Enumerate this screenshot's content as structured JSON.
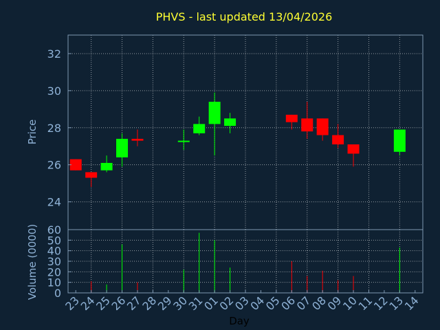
{
  "chart_data": {
    "type": "candlestick",
    "title": "PHVS - last updated 13/04/2026",
    "xlabel": "Day",
    "x_tick_labels": [
      "23",
      "24",
      "25",
      "26",
      "27",
      "28",
      "29",
      "30",
      "31",
      "01",
      "02",
      "03",
      "04",
      "05",
      "06",
      "07",
      "08",
      "09",
      "10",
      "11",
      "12",
      "13",
      "14"
    ],
    "colors": {
      "up": "#00ff00",
      "down": "#ff0000",
      "title": "#ffff33",
      "axis_text": "#8fb2d6",
      "background": "#0f2132"
    },
    "price_panel": {
      "ylabel": "Price",
      "ylim": [
        22.5,
        33.0
      ],
      "yticks": [
        24,
        26,
        28,
        30,
        32
      ],
      "grid": true
    },
    "volume_panel": {
      "ylabel": "Volume (0000)",
      "ylim": [
        0,
        60
      ],
      "yticks": [
        0,
        10,
        20,
        30,
        40,
        50,
        60
      ],
      "grid": true
    },
    "candles": [
      {
        "day": "23",
        "open": 26.3,
        "high": 26.3,
        "low": 25.7,
        "close": 25.7,
        "volume": 0
      },
      {
        "day": "24",
        "open": 25.6,
        "high": 25.6,
        "low": 24.8,
        "close": 25.3,
        "volume": 11
      },
      {
        "day": "25",
        "open": 25.7,
        "high": 26.5,
        "low": 25.6,
        "close": 26.1,
        "volume": 8
      },
      {
        "day": "26",
        "open": 26.4,
        "high": 27.7,
        "low": 25.9,
        "close": 27.4,
        "volume": 46
      },
      {
        "day": "27",
        "open": 27.4,
        "high": 27.9,
        "low": 27.0,
        "close": 27.3,
        "volume": 10
      },
      {
        "day": "30",
        "open": 27.3,
        "high": 27.9,
        "low": 26.8,
        "close": 27.3,
        "volume": 22
      },
      {
        "day": "31",
        "open": 27.7,
        "high": 28.6,
        "low": 27.6,
        "close": 28.2,
        "volume": 57
      },
      {
        "day": "01",
        "open": 28.2,
        "high": 29.9,
        "low": 26.5,
        "close": 29.4,
        "volume": 50
      },
      {
        "day": "02",
        "open": 28.1,
        "high": 28.8,
        "low": 27.7,
        "close": 28.5,
        "volume": 24
      },
      {
        "day": "06",
        "open": 28.7,
        "high": 28.7,
        "low": 27.9,
        "close": 28.3,
        "volume": 30
      },
      {
        "day": "07",
        "open": 28.5,
        "high": 29.4,
        "low": 27.4,
        "close": 27.8,
        "volume": 16
      },
      {
        "day": "08",
        "open": 28.5,
        "high": 28.5,
        "low": 27.3,
        "close": 27.6,
        "volume": 21
      },
      {
        "day": "09",
        "open": 27.6,
        "high": 28.2,
        "low": 26.9,
        "close": 27.1,
        "volume": 12
      },
      {
        "day": "10",
        "open": 27.1,
        "high": 27.1,
        "low": 25.9,
        "close": 26.6,
        "volume": 16
      },
      {
        "day": "13",
        "open": 26.7,
        "high": 27.9,
        "low": 26.5,
        "close": 27.9,
        "volume": 43
      }
    ]
  }
}
